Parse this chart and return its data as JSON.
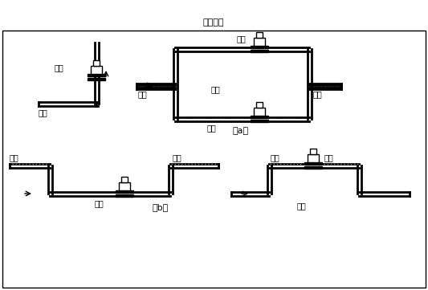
{
  "title": "图（四）",
  "label_a": "（a）",
  "label_b": "（b）",
  "text_correct": "正确",
  "text_wrong": "错误",
  "text_liquid": "液体",
  "text_bubble": "气泡",
  "bg_color": "#ffffff",
  "line_color": "#000000",
  "lw": 2.0,
  "font_size": 7,
  "title_font_size": 8
}
